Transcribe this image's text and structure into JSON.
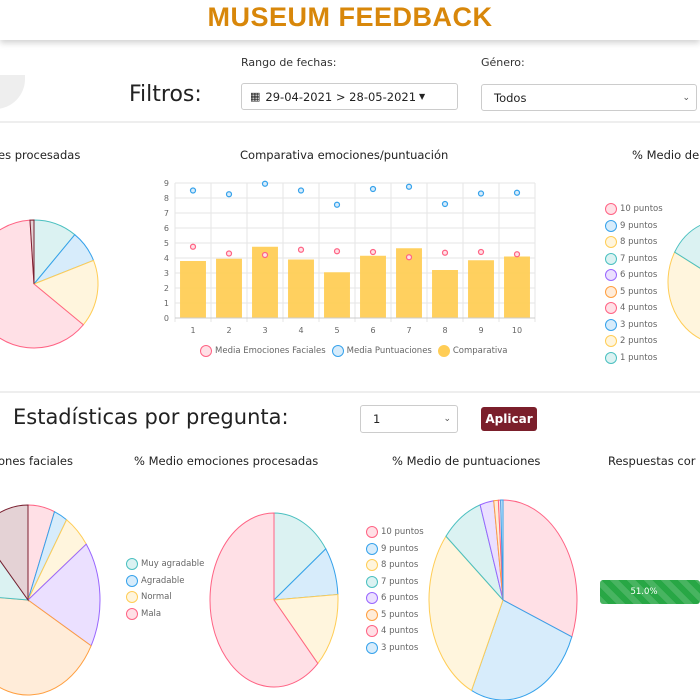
{
  "header": {
    "title": "MUSEUM FEEDBACK"
  },
  "filters": {
    "label": "Filtros:",
    "date_label": "Rango de fechas:",
    "date_value": "29-04-2021 > 28-05-2021",
    "gender_label": "Género:",
    "gender_value": "Todos"
  },
  "stats": {
    "label": "Estadísticas por pregunta:",
    "question_value": "1",
    "apply": "Aplicar"
  },
  "colors": {
    "pink": "#ff6384",
    "blue": "#36a2eb",
    "yellow": "#ffcd56",
    "teal": "#4bc0c0",
    "purple": "#9966ff",
    "orange": "#ff9f40",
    "maroon": "#7a2030",
    "accent": "#d8870a",
    "button": "#7b1f2b",
    "progress": "#28a745"
  },
  "chart_data": [
    {
      "id": "top-emotions",
      "type": "pie",
      "title": "% Medio emociones procesadas",
      "title_visible": "es procesadas",
      "values": [
        11,
        8,
        17,
        63,
        1
      ]
    },
    {
      "id": "comparison",
      "type": "bar",
      "title": "Comparativa emociones/puntuación",
      "categories": [
        "1",
        "2",
        "3",
        "4",
        "5",
        "6",
        "7",
        "8",
        "9",
        "10"
      ],
      "ylim": [
        0,
        9
      ],
      "yticks": [
        "0",
        "1",
        "2",
        "3",
        "4",
        "5",
        "6",
        "7",
        "8",
        "9"
      ],
      "grid": true,
      "legend": "bottom",
      "series": [
        {
          "name": "Media Emociones Faciales",
          "type": "scatter",
          "values": [
            4.75,
            4.3,
            4.2,
            4.55,
            4.45,
            4.4,
            4.05,
            4.35,
            4.4,
            4.25
          ]
        },
        {
          "name": "Media Puntuaciones",
          "type": "scatter",
          "values": [
            8.5,
            8.25,
            8.95,
            8.5,
            7.55,
            8.6,
            8.75,
            7.6,
            8.3,
            8.35
          ]
        },
        {
          "name": "Comparativa",
          "type": "bar",
          "values": [
            3.8,
            3.95,
            4.75,
            3.9,
            3.05,
            4.15,
            4.65,
            3.2,
            3.85,
            4.1
          ]
        }
      ]
    },
    {
      "id": "top-scores",
      "type": "pie",
      "title": "% Medio de puntuaciones",
      "title_visible": "% Medio de",
      "labels": [
        "10 puntos",
        "9 puntos",
        "8 puntos",
        "7 puntos",
        "6 puntos",
        "5 puntos",
        "4 puntos",
        "3 puntos",
        "2 puntos",
        "1 puntos"
      ],
      "values": [
        30,
        25,
        28,
        11,
        4,
        1,
        0.5,
        0.5,
        0,
        0
      ]
    },
    {
      "id": "q-facial",
      "type": "pie",
      "title_visible": "ones faciales",
      "values": [
        6,
        3,
        6,
        18,
        43,
        12,
        12
      ]
    },
    {
      "id": "q-emotions",
      "type": "pie",
      "title": "% Medio emociones procesadas",
      "labels": [
        "Muy agradable",
        "Agradable",
        "Normal",
        "Mala"
      ],
      "values": [
        15,
        9,
        14,
        62
      ]
    },
    {
      "id": "q-scores",
      "type": "pie",
      "title": "% Medio de puntuaciones",
      "labels": [
        "10 puntos",
        "9 puntos",
        "8 puntos",
        "7 puntos",
        "6 puntos",
        "5 puntos",
        "4 puntos",
        "3 puntos"
      ],
      "values": [
        31,
        26,
        29,
        9,
        3,
        1,
        0.5,
        0.5
      ]
    },
    {
      "id": "q-answers",
      "type": "progress",
      "title_visible": "Respuestas cor",
      "value_label": "51.0%",
      "value": 51.0
    }
  ]
}
